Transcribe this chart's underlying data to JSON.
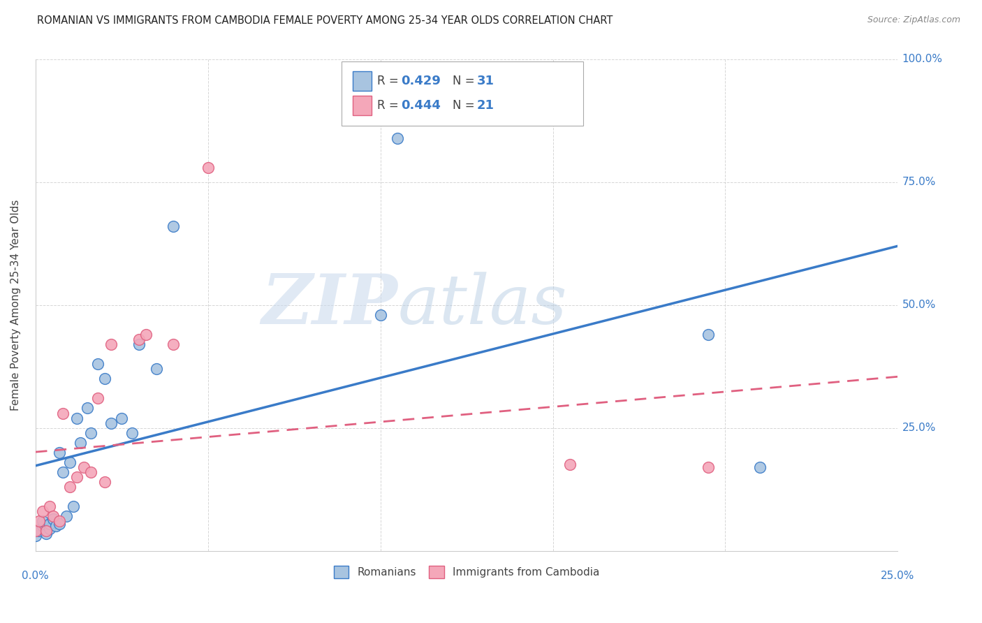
{
  "title": "ROMANIAN VS IMMIGRANTS FROM CAMBODIA FEMALE POVERTY AMONG 25-34 YEAR OLDS CORRELATION CHART",
  "source": "Source: ZipAtlas.com",
  "ylabel": "Female Poverty Among 25-34 Year Olds",
  "xlim": [
    0.0,
    0.25
  ],
  "ylim": [
    0.0,
    1.0
  ],
  "ytick_values": [
    0.0,
    0.25,
    0.5,
    0.75,
    1.0
  ],
  "ytick_labels_right": [
    "",
    "25.0%",
    "50.0%",
    "75.0%",
    "100.0%"
  ],
  "xtick_values": [
    0.0,
    0.05,
    0.1,
    0.15,
    0.2,
    0.25
  ],
  "romanians_x": [
    0.0,
    0.001,
    0.002,
    0.002,
    0.003,
    0.004,
    0.004,
    0.005,
    0.006,
    0.007,
    0.007,
    0.008,
    0.009,
    0.01,
    0.011,
    0.012,
    0.013,
    0.015,
    0.016,
    0.018,
    0.02,
    0.022,
    0.025,
    0.028,
    0.03,
    0.035,
    0.04,
    0.1,
    0.105,
    0.195,
    0.21
  ],
  "romanians_y": [
    0.03,
    0.04,
    0.05,
    0.06,
    0.035,
    0.045,
    0.055,
    0.065,
    0.05,
    0.055,
    0.2,
    0.16,
    0.07,
    0.18,
    0.09,
    0.27,
    0.22,
    0.29,
    0.24,
    0.38,
    0.35,
    0.26,
    0.27,
    0.24,
    0.42,
    0.37,
    0.66,
    0.48,
    0.84,
    0.44,
    0.17
  ],
  "cambodia_x": [
    0.0,
    0.001,
    0.002,
    0.003,
    0.004,
    0.005,
    0.007,
    0.008,
    0.01,
    0.012,
    0.014,
    0.016,
    0.018,
    0.02,
    0.022,
    0.03,
    0.032,
    0.04,
    0.05,
    0.155,
    0.195
  ],
  "cambodia_y": [
    0.04,
    0.06,
    0.08,
    0.04,
    0.09,
    0.07,
    0.06,
    0.28,
    0.13,
    0.15,
    0.17,
    0.16,
    0.31,
    0.14,
    0.42,
    0.43,
    0.44,
    0.42,
    0.78,
    0.175,
    0.17
  ],
  "romanian_color": "#a8c4e0",
  "cambodia_color": "#f4a7b9",
  "romanian_line_color": "#3a7bc8",
  "cambodia_line_color": "#e06080",
  "R_romanian": 0.429,
  "N_romanian": 31,
  "R_cambodia": 0.444,
  "N_cambodia": 21,
  "legend_label_romanian": "Romanians",
  "legend_label_cambodia": "Immigrants from Cambodia",
  "watermark_zip": "ZIP",
  "watermark_atlas": "atlas",
  "background_color": "#ffffff",
  "grid_color": "#cccccc",
  "text_color_blue": "#3a7bc8",
  "text_color_dark": "#444444",
  "text_color_light": "#888888"
}
